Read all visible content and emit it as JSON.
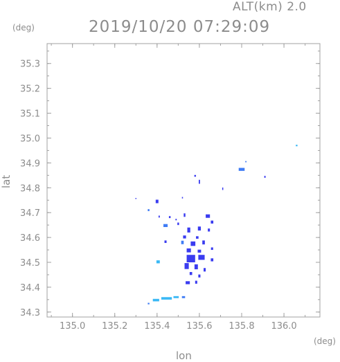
{
  "header": {
    "altitude_label": "ALT(km) 2.0",
    "datetime": "2019/10/20 07:29:09"
  },
  "axes": {
    "x_unit": "(deg)",
    "y_unit": "(deg)",
    "x_label": "lon",
    "y_label": "lat"
  },
  "chart_data": {
    "type": "heatmap",
    "xlabel": "lon",
    "ylabel": "lat",
    "xlim": [
      134.88,
      136.17
    ],
    "ylim": [
      34.28,
      35.38
    ],
    "x_ticks": [
      "135.0",
      "135.2",
      "135.4",
      "135.6",
      "135.8",
      "136.0"
    ],
    "y_ticks": [
      "34.3",
      "34.4",
      "34.5",
      "34.6",
      "34.7",
      "34.8",
      "34.9",
      "35.0",
      "35.1",
      "35.2",
      "35.3"
    ],
    "grid": false,
    "colors": {
      "dark": "#3a3cf0",
      "mid": "#3f7cf5",
      "light": "#3ab8f5"
    },
    "cells": [
      {
        "lon": 136.06,
        "lat": 34.97,
        "w": 0.008,
        "h": 0.006,
        "c": "light"
      },
      {
        "lon": 135.8,
        "lat": 34.874,
        "w": 0.028,
        "h": 0.012,
        "c": "mid"
      },
      {
        "lon": 135.82,
        "lat": 34.905,
        "w": 0.006,
        "h": 0.005,
        "c": "mid"
      },
      {
        "lon": 135.91,
        "lat": 34.844,
        "w": 0.006,
        "h": 0.008,
        "c": "dark"
      },
      {
        "lon": 135.58,
        "lat": 34.848,
        "w": 0.008,
        "h": 0.007,
        "c": "dark"
      },
      {
        "lon": 135.6,
        "lat": 34.824,
        "w": 0.006,
        "h": 0.016,
        "c": "dark"
      },
      {
        "lon": 135.71,
        "lat": 34.796,
        "w": 0.004,
        "h": 0.01,
        "c": "dark"
      },
      {
        "lon": 135.3,
        "lat": 34.757,
        "w": 0.005,
        "h": 0.004,
        "c": "dark"
      },
      {
        "lon": 135.4,
        "lat": 34.745,
        "w": 0.013,
        "h": 0.014,
        "c": "dark"
      },
      {
        "lon": 135.52,
        "lat": 34.76,
        "w": 0.005,
        "h": 0.006,
        "c": "dark"
      },
      {
        "lon": 135.36,
        "lat": 34.71,
        "w": 0.008,
        "h": 0.008,
        "c": "mid"
      },
      {
        "lon": 135.41,
        "lat": 34.684,
        "w": 0.006,
        "h": 0.008,
        "c": "dark"
      },
      {
        "lon": 135.46,
        "lat": 34.682,
        "w": 0.008,
        "h": 0.008,
        "c": "dark"
      },
      {
        "lon": 135.49,
        "lat": 34.672,
        "w": 0.006,
        "h": 0.006,
        "c": "dark"
      },
      {
        "lon": 135.53,
        "lat": 34.69,
        "w": 0.008,
        "h": 0.014,
        "c": "dark"
      },
      {
        "lon": 135.64,
        "lat": 34.686,
        "w": 0.02,
        "h": 0.014,
        "c": "dark"
      },
      {
        "lon": 135.66,
        "lat": 34.662,
        "w": 0.012,
        "h": 0.012,
        "c": "dark"
      },
      {
        "lon": 135.44,
        "lat": 34.648,
        "w": 0.02,
        "h": 0.012,
        "c": "mid"
      },
      {
        "lon": 135.5,
        "lat": 34.655,
        "w": 0.008,
        "h": 0.01,
        "c": "dark"
      },
      {
        "lon": 135.55,
        "lat": 34.63,
        "w": 0.014,
        "h": 0.02,
        "c": "dark"
      },
      {
        "lon": 135.6,
        "lat": 34.636,
        "w": 0.014,
        "h": 0.016,
        "c": "dark"
      },
      {
        "lon": 135.645,
        "lat": 34.63,
        "w": 0.01,
        "h": 0.012,
        "c": "dark"
      },
      {
        "lon": 135.53,
        "lat": 34.602,
        "w": 0.014,
        "h": 0.012,
        "c": "dark"
      },
      {
        "lon": 135.59,
        "lat": 34.6,
        "w": 0.012,
        "h": 0.01,
        "c": "dark"
      },
      {
        "lon": 135.44,
        "lat": 34.583,
        "w": 0.01,
        "h": 0.01,
        "c": "dark"
      },
      {
        "lon": 135.52,
        "lat": 34.58,
        "w": 0.012,
        "h": 0.014,
        "c": "mid"
      },
      {
        "lon": 135.57,
        "lat": 34.575,
        "w": 0.022,
        "h": 0.018,
        "c": "dark"
      },
      {
        "lon": 135.62,
        "lat": 34.58,
        "w": 0.012,
        "h": 0.016,
        "c": "dark"
      },
      {
        "lon": 135.55,
        "lat": 34.548,
        "w": 0.02,
        "h": 0.016,
        "c": "dark"
      },
      {
        "lon": 135.6,
        "lat": 34.545,
        "w": 0.016,
        "h": 0.012,
        "c": "dark"
      },
      {
        "lon": 135.66,
        "lat": 34.555,
        "w": 0.01,
        "h": 0.01,
        "c": "dark"
      },
      {
        "lon": 135.56,
        "lat": 34.515,
        "w": 0.04,
        "h": 0.03,
        "c": "dark"
      },
      {
        "lon": 135.61,
        "lat": 34.52,
        "w": 0.03,
        "h": 0.02,
        "c": "dark"
      },
      {
        "lon": 135.66,
        "lat": 34.51,
        "w": 0.012,
        "h": 0.012,
        "c": "dark"
      },
      {
        "lon": 135.405,
        "lat": 34.502,
        "w": 0.016,
        "h": 0.012,
        "c": "light"
      },
      {
        "lon": 135.54,
        "lat": 34.485,
        "w": 0.02,
        "h": 0.024,
        "c": "dark"
      },
      {
        "lon": 135.585,
        "lat": 34.482,
        "w": 0.016,
        "h": 0.02,
        "c": "dark"
      },
      {
        "lon": 135.625,
        "lat": 34.47,
        "w": 0.01,
        "h": 0.014,
        "c": "dark"
      },
      {
        "lon": 135.56,
        "lat": 34.455,
        "w": 0.012,
        "h": 0.012,
        "c": "dark"
      },
      {
        "lon": 135.6,
        "lat": 34.445,
        "w": 0.01,
        "h": 0.012,
        "c": "dark"
      },
      {
        "lon": 135.545,
        "lat": 34.418,
        "w": 0.02,
        "h": 0.012,
        "c": "dark"
      },
      {
        "lon": 135.585,
        "lat": 34.42,
        "w": 0.01,
        "h": 0.012,
        "c": "dark"
      },
      {
        "lon": 135.445,
        "lat": 34.355,
        "w": 0.05,
        "h": 0.01,
        "c": "light"
      },
      {
        "lon": 135.395,
        "lat": 34.348,
        "w": 0.03,
        "h": 0.01,
        "c": "light"
      },
      {
        "lon": 135.49,
        "lat": 34.36,
        "w": 0.025,
        "h": 0.008,
        "c": "light"
      },
      {
        "lon": 135.525,
        "lat": 34.36,
        "w": 0.015,
        "h": 0.008,
        "c": "mid"
      },
      {
        "lon": 135.36,
        "lat": 34.334,
        "w": 0.008,
        "h": 0.006,
        "c": "mid"
      }
    ]
  }
}
